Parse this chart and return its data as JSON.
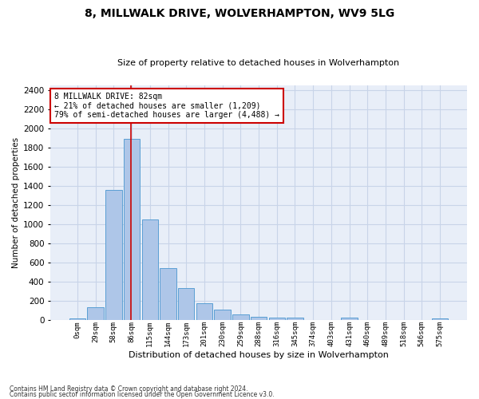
{
  "title": "8, MILLWALK DRIVE, WOLVERHAMPTON, WV9 5LG",
  "subtitle": "Size of property relative to detached houses in Wolverhampton",
  "xlabel": "Distribution of detached houses by size in Wolverhampton",
  "ylabel": "Number of detached properties",
  "footnote1": "Contains HM Land Registry data © Crown copyright and database right 2024.",
  "footnote2": "Contains public sector information licensed under the Open Government Licence v3.0.",
  "bar_labels": [
    "0sqm",
    "29sqm",
    "58sqm",
    "86sqm",
    "115sqm",
    "144sqm",
    "173sqm",
    "201sqm",
    "230sqm",
    "259sqm",
    "288sqm",
    "316sqm",
    "345sqm",
    "374sqm",
    "403sqm",
    "431sqm",
    "460sqm",
    "489sqm",
    "518sqm",
    "546sqm",
    "575sqm"
  ],
  "bar_values": [
    15,
    135,
    1355,
    1895,
    1045,
    540,
    335,
    170,
    110,
    60,
    35,
    25,
    20,
    0,
    0,
    25,
    0,
    0,
    0,
    0,
    15
  ],
  "bar_color": "#aec6e8",
  "bar_edge_color": "#5a9fd4",
  "vline_color": "#cc0000",
  "annotation_text": "8 MILLWALK DRIVE: 82sqm\n← 21% of detached houses are smaller (1,209)\n79% of semi-detached houses are larger (4,488) →",
  "annotation_box_color": "#ffffff",
  "annotation_box_edge": "#cc0000",
  "ylim": [
    0,
    2450
  ],
  "yticks": [
    0,
    200,
    400,
    600,
    800,
    1000,
    1200,
    1400,
    1600,
    1800,
    2000,
    2200,
    2400
  ],
  "grid_color": "#c8d4e8",
  "bg_color": "#e8eef8",
  "title_fontsize": 10,
  "subtitle_fontsize": 8.5,
  "vline_x_pos": 2.93
}
